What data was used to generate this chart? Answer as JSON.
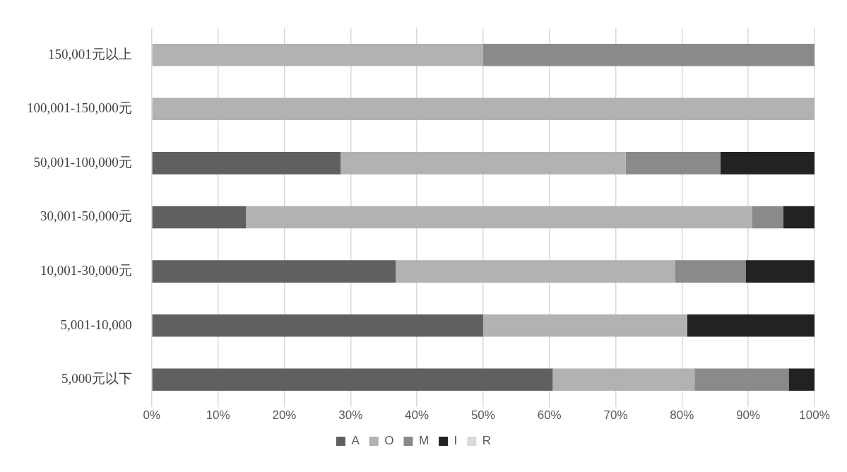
{
  "chart_data": {
    "type": "bar",
    "orientation": "horizontal",
    "stacked": true,
    "categories": [
      "150,001元以上",
      "100,001-150,000元",
      "50,001-100,000元",
      "30,001-50,000元",
      "10,001-30,000元",
      "5,001-10,000",
      "5,000元以下"
    ],
    "series": [
      {
        "name": "A",
        "color": "#606060",
        "values": [
          0,
          0,
          28.5,
          14.2,
          36.8,
          50,
          60.5
        ]
      },
      {
        "name": "O",
        "color": "#b2b2b2",
        "values": [
          50,
          100,
          43.0,
          76.4,
          42.2,
          30.8,
          21.4
        ]
      },
      {
        "name": "M",
        "color": "#8a8a8a",
        "values": [
          50,
          0,
          14.3,
          4.7,
          10.6,
          0,
          14.2
        ]
      },
      {
        "name": "I",
        "color": "#222222",
        "values": [
          0,
          0,
          14.2,
          4.7,
          10.4,
          19.2,
          3.9
        ]
      },
      {
        "name": "R",
        "color": "#d9d9d9",
        "values": [
          0,
          0,
          0,
          0,
          0,
          0,
          0
        ]
      }
    ],
    "xlim": [
      0,
      100
    ],
    "xticks": [
      {
        "value": 0,
        "label": "0%"
      },
      {
        "value": 10,
        "label": "10%"
      },
      {
        "value": 20,
        "label": "20%"
      },
      {
        "value": 30,
        "label": "30%"
      },
      {
        "value": 40,
        "label": "40%"
      },
      {
        "value": 50,
        "label": "50%"
      },
      {
        "value": 60,
        "label": "60%"
      },
      {
        "value": 70,
        "label": "70%"
      },
      {
        "value": 80,
        "label": "80%"
      },
      {
        "value": 90,
        "label": "90%"
      },
      {
        "value": 100,
        "label": "100%"
      }
    ],
    "grid": "x",
    "legend": "bottom"
  }
}
